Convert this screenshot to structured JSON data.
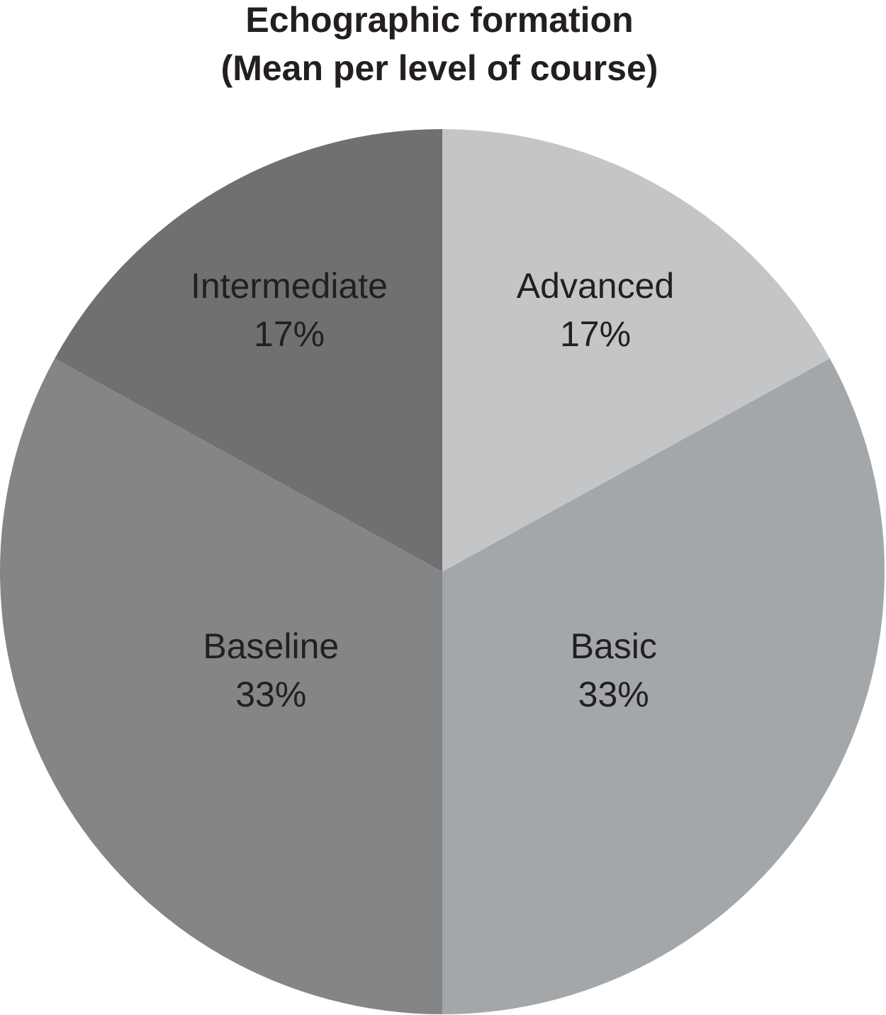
{
  "chart_data": {
    "type": "pie",
    "title": [
      "Echographic formation",
      "(Mean per level of course)"
    ],
    "categories": [
      "Advanced",
      "Basic",
      "Baseline",
      "Intermediate"
    ],
    "values": [
      17,
      33,
      33,
      17
    ],
    "value_labels": [
      "17%",
      "33%",
      "33%",
      "17%"
    ],
    "colors": [
      "#c4c5c7",
      "#a4a7aa",
      "#848587",
      "#6f7072"
    ],
    "start_angle": 0,
    "direction": "clockwise"
  }
}
